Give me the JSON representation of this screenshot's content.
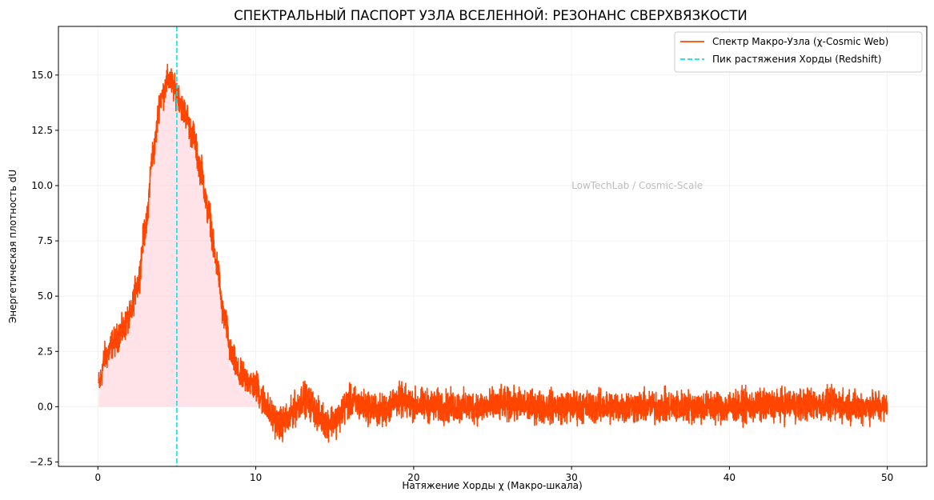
{
  "chart_data": {
    "type": "line",
    "title": "СПЕКТРАЛЬНЫЙ ПАСПОРТ УЗЛА ВСЕЛЕННОЙ: РЕЗОНАНС СВЕРХВЯЗКОСТИ",
    "xlabel": "Натяжение Хорды χ (Макро-шкала)",
    "ylabel": "Энергетическая плотность dU",
    "xlim": [
      -2.5,
      52.5
    ],
    "ylim": [
      -2.7,
      17.2
    ],
    "xticks": [
      0,
      10,
      20,
      30,
      40,
      50
    ],
    "xtick_labels": [
      "0",
      "10",
      "20",
      "30",
      "40",
      "50"
    ],
    "yticks": [
      -2.5,
      0.0,
      2.5,
      5.0,
      7.5,
      10.0,
      12.5,
      15.0
    ],
    "ytick_labels": [
      "−2.5",
      "0.0",
      "2.5",
      "5.0",
      "7.5",
      "10.0",
      "12.5",
      "15.0"
    ],
    "grid": true,
    "legend_position": "upper right",
    "annotation": {
      "text": "LowTechLab / Cosmic-Scale",
      "x": 30,
      "y": 10
    },
    "series": [
      {
        "name": "Спектр Макро-Узла (χ-Cosmic Web)",
        "color": "#ff4500",
        "style": "solid",
        "x_range": [
          0.05,
          50
        ],
        "envelope_x": [
          0.05,
          0.5,
          1,
          1.5,
          2,
          2.5,
          3,
          3.5,
          4,
          4.5,
          5,
          5.5,
          6,
          6.5,
          7,
          7.5,
          8,
          8.5,
          9,
          9.5,
          10,
          10.5,
          11,
          11.5,
          12,
          12.5,
          13,
          13.5,
          14,
          14.5,
          15,
          16,
          17,
          18,
          19,
          20,
          22,
          24,
          26,
          28,
          30,
          35,
          40,
          45,
          50
        ],
        "envelope_y": [
          1.0,
          2.3,
          2.9,
          3.4,
          4.0,
          5.5,
          8.0,
          11.5,
          14.0,
          14.8,
          14.2,
          13.3,
          12.3,
          10.8,
          8.8,
          6.5,
          4.0,
          2.2,
          1.4,
          1.2,
          0.9,
          0.3,
          -0.4,
          -0.8,
          -0.6,
          -0.1,
          0.4,
          0.1,
          -0.4,
          -0.7,
          -0.6,
          0.2,
          0.0,
          -0.2,
          0.3,
          0.1,
          0.0,
          0.0,
          0.1,
          0.0,
          0.0,
          0.0,
          0.0,
          0.1,
          0.0
        ],
        "noise_amplitude": 0.55
      },
      {
        "name": "Пик растяжения Хорды (Redshift)",
        "color": "#00e5ee",
        "style": "dashed",
        "x": 5.0
      }
    ],
    "fill": {
      "x_range": [
        0,
        10.5
      ],
      "color": "#ffc0cb",
      "opacity": 0.45,
      "baseline": 0
    }
  }
}
